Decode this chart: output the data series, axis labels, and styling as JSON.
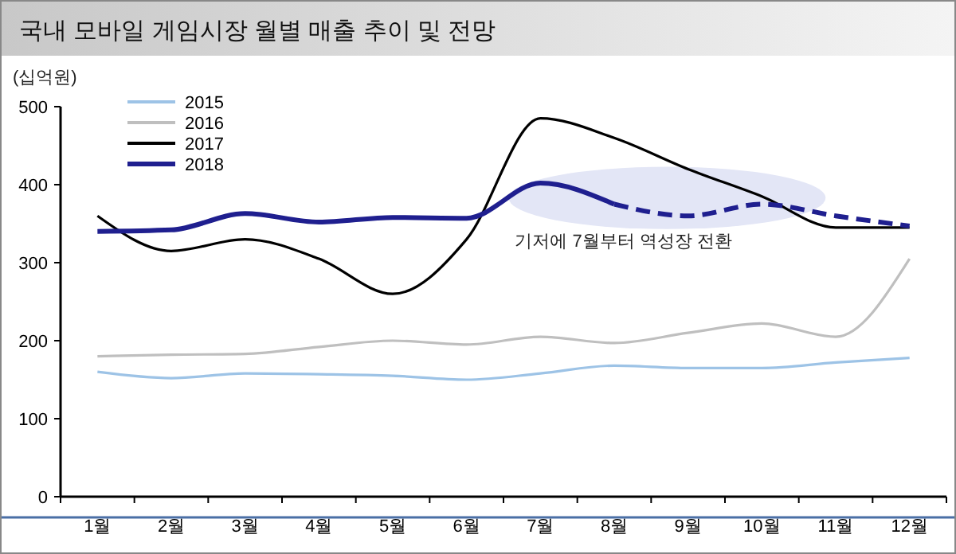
{
  "chart_data": {
    "type": "line",
    "title": "국내 모바일 게임시장 월별 매출 추이 및 전망",
    "ylabel": "(십억원)",
    "categories": [
      "1월",
      "2월",
      "3월",
      "4월",
      "5월",
      "6월",
      "7월",
      "8월",
      "9월",
      "10월",
      "11월",
      "12월"
    ],
    "ylim": [
      0,
      500
    ],
    "yticks": [
      0,
      100,
      200,
      300,
      400,
      500
    ],
    "grid": false,
    "legend": "top left",
    "annotations": [
      "기저에 7월부터 역성장 전환"
    ],
    "series": [
      {
        "name": "2015",
        "color": "#9dc3e6",
        "values": [
          160,
          152,
          158,
          157,
          155,
          150,
          158,
          168,
          165,
          165,
          172,
          178
        ]
      },
      {
        "name": "2016",
        "color": "#bfbfbf",
        "values": [
          180,
          182,
          183,
          192,
          200,
          195,
          205,
          197,
          210,
          222,
          205,
          305
        ]
      },
      {
        "name": "2017",
        "color": "#000000",
        "values": [
          360,
          315,
          330,
          305,
          260,
          330,
          485,
          460,
          420,
          385,
          345,
          345
        ]
      },
      {
        "name": "2018",
        "color": "#1f1f8f",
        "values": [
          340,
          342,
          363,
          352,
          358,
          357,
          402,
          375,
          null,
          null,
          null,
          null
        ]
      },
      {
        "color": "#1f1f8f",
        "line_style": "dashed",
        "values": [
          null,
          null,
          null,
          null,
          null,
          null,
          null,
          375,
          360,
          375,
          360,
          347
        ]
      }
    ]
  }
}
